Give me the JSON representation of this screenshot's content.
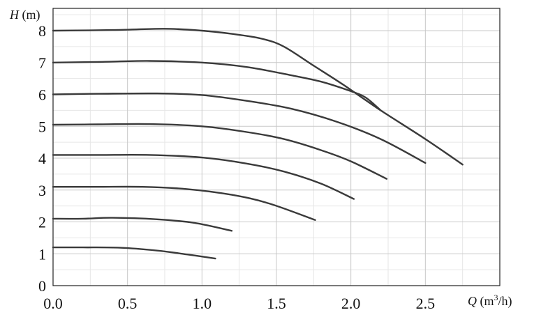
{
  "chart_data": {
    "type": "line",
    "ylabel_symbol": "H",
    "ylabel_unit": " (m)",
    "xlabel_symbol": "Q",
    "xlabel_unit_pre": " (m",
    "xlabel_unit_sup": "3",
    "xlabel_unit_post": "/h)",
    "xlim": [
      0,
      3.0
    ],
    "ylim": [
      0,
      8.7
    ],
    "x_ticks": [
      "0.0",
      "0.5",
      "1.0",
      "1.5",
      "2.0",
      "2.5"
    ],
    "x_tick_values": [
      0,
      0.5,
      1.0,
      1.5,
      2.0,
      2.5
    ],
    "y_ticks": [
      "0",
      "1",
      "2",
      "3",
      "4",
      "5",
      "6",
      "7",
      "8"
    ],
    "y_tick_values": [
      0,
      1,
      2,
      3,
      4,
      5,
      6,
      7,
      8
    ],
    "grid": true,
    "series": [
      {
        "points": [
          [
            0,
            8.0
          ],
          [
            0.4,
            8.02
          ],
          [
            0.75,
            8.06
          ],
          [
            1.0,
            8.0
          ],
          [
            1.2,
            7.9
          ],
          [
            1.4,
            7.75
          ],
          [
            1.55,
            7.5
          ],
          [
            1.75,
            6.9
          ],
          [
            1.95,
            6.3
          ],
          [
            2.2,
            5.5
          ],
          [
            2.5,
            4.6
          ],
          [
            2.75,
            3.8
          ]
        ]
      },
      {
        "points": [
          [
            0,
            7.0
          ],
          [
            0.3,
            7.02
          ],
          [
            0.65,
            7.05
          ],
          [
            1.0,
            7.0
          ],
          [
            1.3,
            6.86
          ],
          [
            1.6,
            6.6
          ],
          [
            1.8,
            6.4
          ],
          [
            2.0,
            6.1
          ],
          [
            2.1,
            5.9
          ],
          [
            2.2,
            5.5
          ]
        ]
      },
      {
        "points": [
          [
            0,
            6.0
          ],
          [
            0.3,
            6.02
          ],
          [
            0.7,
            6.03
          ],
          [
            1.0,
            5.98
          ],
          [
            1.3,
            5.8
          ],
          [
            1.6,
            5.55
          ],
          [
            1.9,
            5.15
          ],
          [
            2.2,
            4.6
          ],
          [
            2.5,
            3.85
          ]
        ]
      },
      {
        "points": [
          [
            0,
            5.05
          ],
          [
            0.3,
            5.06
          ],
          [
            0.65,
            5.07
          ],
          [
            1.0,
            5.0
          ],
          [
            1.3,
            4.82
          ],
          [
            1.55,
            4.6
          ],
          [
            1.8,
            4.25
          ],
          [
            2.0,
            3.9
          ],
          [
            2.24,
            3.35
          ]
        ]
      },
      {
        "points": [
          [
            0,
            4.1
          ],
          [
            0.3,
            4.1
          ],
          [
            0.65,
            4.1
          ],
          [
            1.0,
            4.02
          ],
          [
            1.3,
            3.83
          ],
          [
            1.55,
            3.58
          ],
          [
            1.8,
            3.2
          ],
          [
            2.02,
            2.72
          ]
        ]
      },
      {
        "points": [
          [
            0,
            3.1
          ],
          [
            0.3,
            3.1
          ],
          [
            0.6,
            3.1
          ],
          [
            0.9,
            3.03
          ],
          [
            1.2,
            2.85
          ],
          [
            1.45,
            2.58
          ],
          [
            1.76,
            2.06
          ]
        ]
      },
      {
        "points": [
          [
            0,
            2.1
          ],
          [
            0.2,
            2.1
          ],
          [
            0.4,
            2.13
          ],
          [
            0.7,
            2.08
          ],
          [
            0.95,
            1.97
          ],
          [
            1.2,
            1.72
          ]
        ]
      },
      {
        "points": [
          [
            0,
            1.2
          ],
          [
            0.2,
            1.2
          ],
          [
            0.45,
            1.19
          ],
          [
            0.7,
            1.1
          ],
          [
            0.9,
            0.98
          ],
          [
            1.09,
            0.85
          ]
        ]
      }
    ]
  }
}
